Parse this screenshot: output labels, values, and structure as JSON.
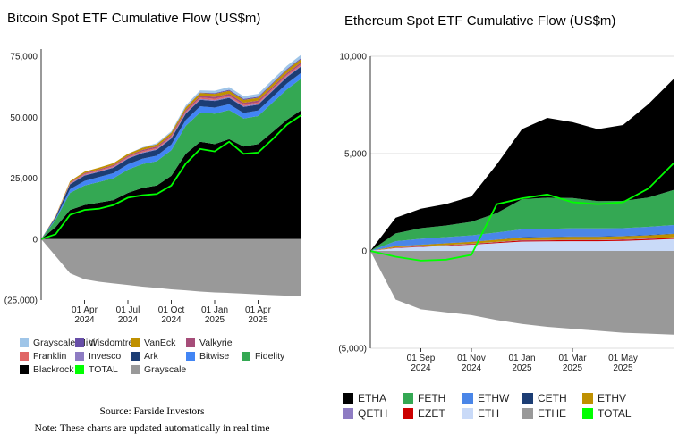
{
  "chart_data": [
    {
      "type": "area",
      "title": "Bitcoin Spot ETF Cumulative Flow (US$m)",
      "x": [
        "2024-01",
        "2024-02",
        "2024-03",
        "2024-04",
        "2024-05",
        "2024-06",
        "2024-07",
        "2024-08",
        "2024-09",
        "2024-10",
        "2024-11",
        "2024-12",
        "2025-01",
        "2025-02",
        "2025-03",
        "2025-04",
        "2025-05",
        "2025-06",
        "2025-07"
      ],
      "xticks": [
        {
          "x": "2024-04",
          "label": [
            "01 Apr",
            "2024"
          ]
        },
        {
          "x": "2024-07",
          "label": [
            "01 Jul",
            "2024"
          ]
        },
        {
          "x": "2024-10",
          "label": [
            "01 Oct",
            "2024"
          ]
        },
        {
          "x": "2025-01",
          "label": [
            "01 Jan",
            "2025"
          ]
        },
        {
          "x": "2025-04",
          "label": [
            "01 Apr",
            "2025"
          ]
        }
      ],
      "yticks": [
        {
          "v": 75000,
          "label": "75,000"
        },
        {
          "v": 50000,
          "label": "50,000"
        },
        {
          "v": 25000,
          "label": "25,000"
        },
        {
          "v": 0,
          "label": "0"
        },
        {
          "v": -25000,
          "label": "(25,000)"
        }
      ],
      "ylim": [
        -25000,
        78000
      ],
      "grid": false,
      "legend_position": "bottom",
      "positive_series": [
        {
          "name": "Blackrock",
          "color": "#000000",
          "values": [
            0,
            5000,
            12000,
            14000,
            15000,
            16000,
            19000,
            21000,
            22000,
            26000,
            35000,
            40000,
            39000,
            41000,
            38000,
            39000,
            44000,
            49000,
            53000
          ]
        },
        {
          "name": "Fidelity",
          "color": "#34a853",
          "values": [
            0,
            3000,
            7000,
            8000,
            8500,
            9000,
            9500,
            9800,
            10000,
            10500,
            11500,
            12000,
            12500,
            12000,
            11500,
            11500,
            12000,
            12500,
            13000
          ]
        },
        {
          "name": "Bitwise",
          "color": "#4285f4",
          "values": [
            0,
            500,
            1500,
            1900,
            2000,
            2100,
            2200,
            2200,
            2250,
            2300,
            2400,
            2500,
            2500,
            2400,
            2300,
            2300,
            2350,
            2400,
            2400
          ]
        },
        {
          "name": "Ark",
          "color": "#1c3d74",
          "values": [
            0,
            600,
            2000,
            2200,
            2100,
            2200,
            2300,
            2300,
            2400,
            2500,
            2600,
            2700,
            2700,
            2600,
            2500,
            2400,
            2500,
            2600,
            2600
          ]
        },
        {
          "name": "Invesco",
          "color": "#8e7cc3",
          "values": [
            0,
            100,
            250,
            300,
            300,
            320,
            330,
            340,
            350,
            360,
            380,
            400,
            400,
            400,
            380,
            380,
            390,
            400,
            400
          ]
        },
        {
          "name": "Franklin",
          "color": "#e06666",
          "values": [
            0,
            100,
            250,
            320,
            350,
            380,
            400,
            420,
            440,
            460,
            480,
            500,
            520,
            520,
            510,
            510,
            520,
            530,
            540
          ]
        },
        {
          "name": "Valkyrie",
          "color": "#a64d79",
          "values": [
            0,
            100,
            250,
            350,
            400,
            450,
            500,
            550,
            600,
            650,
            700,
            750,
            800,
            800,
            780,
            780,
            790,
            800,
            800
          ]
        },
        {
          "name": "VanEck",
          "color": "#bf9000",
          "values": [
            0,
            200,
            550,
            650,
            700,
            750,
            800,
            850,
            900,
            950,
            1050,
            1150,
            1200,
            1200,
            1150,
            1150,
            1200,
            1220,
            1250
          ]
        },
        {
          "name": "Wisdomtree",
          "color": "#674ea7",
          "values": [
            0,
            0,
            0,
            0,
            0,
            10,
            20,
            30,
            40,
            50,
            100,
            200,
            300,
            400,
            420,
            420,
            430,
            440,
            450
          ]
        },
        {
          "name": "Grayscale Mini",
          "color": "#9fc5e8",
          "values": [
            0,
            0,
            0,
            0,
            0,
            0,
            0,
            200,
            400,
            500,
            700,
            900,
            1000,
            1100,
            1150,
            1200,
            1250,
            1300,
            1350
          ]
        }
      ],
      "negative_series": [
        {
          "name": "Grayscale",
          "color": "#999999",
          "values": [
            0,
            -7000,
            -14000,
            -16500,
            -17500,
            -18200,
            -18800,
            -19500,
            -20000,
            -20600,
            -21000,
            -21500,
            -21900,
            -22100,
            -22400,
            -22700,
            -23000,
            -23200,
            -23400
          ]
        }
      ],
      "total": {
        "name": "TOTAL",
        "color": "#00ff00",
        "values": [
          0,
          2000,
          10000,
          12000,
          12500,
          14000,
          17000,
          18000,
          18500,
          22000,
          31000,
          37000,
          36000,
          40000,
          35000,
          35500,
          41000,
          47000,
          51000
        ]
      },
      "legend": [
        [
          "Grayscale Mini",
          "Wisdomtree",
          "VanEck",
          "Valkyrie"
        ],
        [
          "Franklin",
          "Invesco",
          "Ark",
          "Bitwise",
          "Fidelity"
        ],
        [
          "Blackrock",
          "TOTAL",
          "Grayscale"
        ]
      ]
    },
    {
      "type": "area",
      "title": "Ethereum Spot ETF Cumulative Flow (US$m)",
      "x": [
        "2024-07",
        "2024-08",
        "2024-09",
        "2024-10",
        "2024-11",
        "2024-12",
        "2025-01",
        "2025-02",
        "2025-03",
        "2025-04",
        "2025-05",
        "2025-06",
        "2025-07"
      ],
      "xticks": [
        {
          "x": "2024-09",
          "label": [
            "01 Sep",
            "2024"
          ]
        },
        {
          "x": "2024-11",
          "label": [
            "01 Nov",
            "2024"
          ]
        },
        {
          "x": "2025-01",
          "label": [
            "01 Jan",
            "2025"
          ]
        },
        {
          "x": "2025-03",
          "label": [
            "01 Mar",
            "2025"
          ]
        },
        {
          "x": "2025-05",
          "label": [
            "01 May",
            "2025"
          ]
        }
      ],
      "yticks": [
        {
          "v": 10000,
          "label": "10,000"
        },
        {
          "v": 5000,
          "label": "5,000"
        },
        {
          "v": 0,
          "label": "0"
        },
        {
          "v": -5000,
          "label": "(5,000)"
        }
      ],
      "ylim": [
        -5000,
        10000
      ],
      "grid": true,
      "legend_position": "bottom",
      "positive_series": [
        {
          "name": "ETH",
          "color": "#c9daf8",
          "values": [
            0,
            150,
            200,
            260,
            320,
            400,
            480,
            490,
            500,
            500,
            520,
            560,
            620
          ]
        },
        {
          "name": "EZET",
          "color": "#cc0000",
          "values": [
            0,
            20,
            25,
            30,
            35,
            45,
            55,
            55,
            55,
            55,
            55,
            60,
            60
          ]
        },
        {
          "name": "QETH",
          "color": "#8e7cc3",
          "values": [
            0,
            10,
            12,
            14,
            15,
            17,
            20,
            20,
            20,
            20,
            20,
            20,
            20
          ]
        },
        {
          "name": "ETHV",
          "color": "#bf9000",
          "values": [
            0,
            60,
            75,
            85,
            95,
            110,
            130,
            140,
            150,
            150,
            155,
            160,
            170
          ]
        },
        {
          "name": "CETH",
          "color": "#1c3d74",
          "values": [
            0,
            10,
            10,
            10,
            12,
            15,
            20,
            20,
            20,
            20,
            20,
            20,
            20
          ]
        },
        {
          "name": "ETHW",
          "color": "#4a86e8",
          "values": [
            0,
            250,
            300,
            310,
            320,
            360,
            400,
            410,
            420,
            410,
            400,
            420,
            440
          ]
        },
        {
          "name": "FETH",
          "color": "#34a853",
          "values": [
            0,
            400,
            550,
            600,
            700,
            1000,
            1550,
            1600,
            1550,
            1400,
            1400,
            1500,
            1800
          ]
        },
        {
          "name": "ETHA",
          "color": "#000000",
          "values": [
            0,
            800,
            1000,
            1100,
            1300,
            2500,
            3600,
            4100,
            3900,
            3700,
            3900,
            4800,
            5700
          ]
        }
      ],
      "negative_series": [
        {
          "name": "ETHE",
          "color": "#999999",
          "values": [
            0,
            -2500,
            -3000,
            -3150,
            -3300,
            -3550,
            -3750,
            -3900,
            -4000,
            -4100,
            -4200,
            -4250,
            -4300
          ]
        }
      ],
      "total": {
        "name": "TOTAL",
        "color": "#00ff00",
        "values": [
          0,
          -300,
          -500,
          -450,
          -200,
          2400,
          2700,
          2900,
          2500,
          2400,
          2500,
          3200,
          4500
        ]
      },
      "legend": [
        [
          "ETHA",
          "FETH",
          "ETHW",
          "CETH",
          "ETHV"
        ],
        [
          "QETH",
          "EZET",
          "ETH",
          "ETHE",
          "TOTAL"
        ]
      ]
    }
  ],
  "source": "Source: Farside Investors",
  "note": "Note: These charts are updated automatically in real time"
}
